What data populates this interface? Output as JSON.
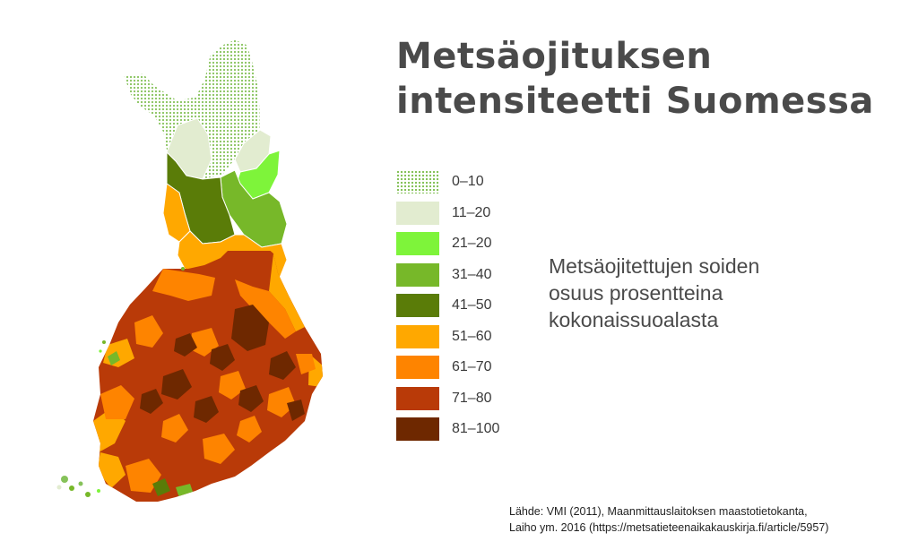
{
  "title": {
    "line1": "Metsäojituksen",
    "line2": "intensiteetti Suomessa"
  },
  "legend": {
    "items": [
      {
        "label": "0–10",
        "color": "#86c25a",
        "pattern": "dots"
      },
      {
        "label": "11–20",
        "color": "#e2ecd0"
      },
      {
        "label": "21–20",
        "color": "#7ef43a"
      },
      {
        "label": "31–40",
        "color": "#77b829"
      },
      {
        "label": "41–50",
        "color": "#5a7c08"
      },
      {
        "label": "51–60",
        "color": "#ffa800"
      },
      {
        "label": "61–70",
        "color": "#fe8400"
      },
      {
        "label": "71–80",
        "color": "#b93a08"
      },
      {
        "label": "81–100",
        "color": "#6e2800"
      }
    ]
  },
  "subtitle": {
    "line1": "Metsäojitettujen soiden",
    "line2": "osuus prosentteina",
    "line3": "kokonaissuoalasta"
  },
  "source": {
    "line1": "Lähde: VMI (2011), Maanmittauslaitoksen maastotietokanta,",
    "line2": "Laiho ym. 2016 (https://metsatieteenaikakauskirja.fi/article/5957)"
  }
}
